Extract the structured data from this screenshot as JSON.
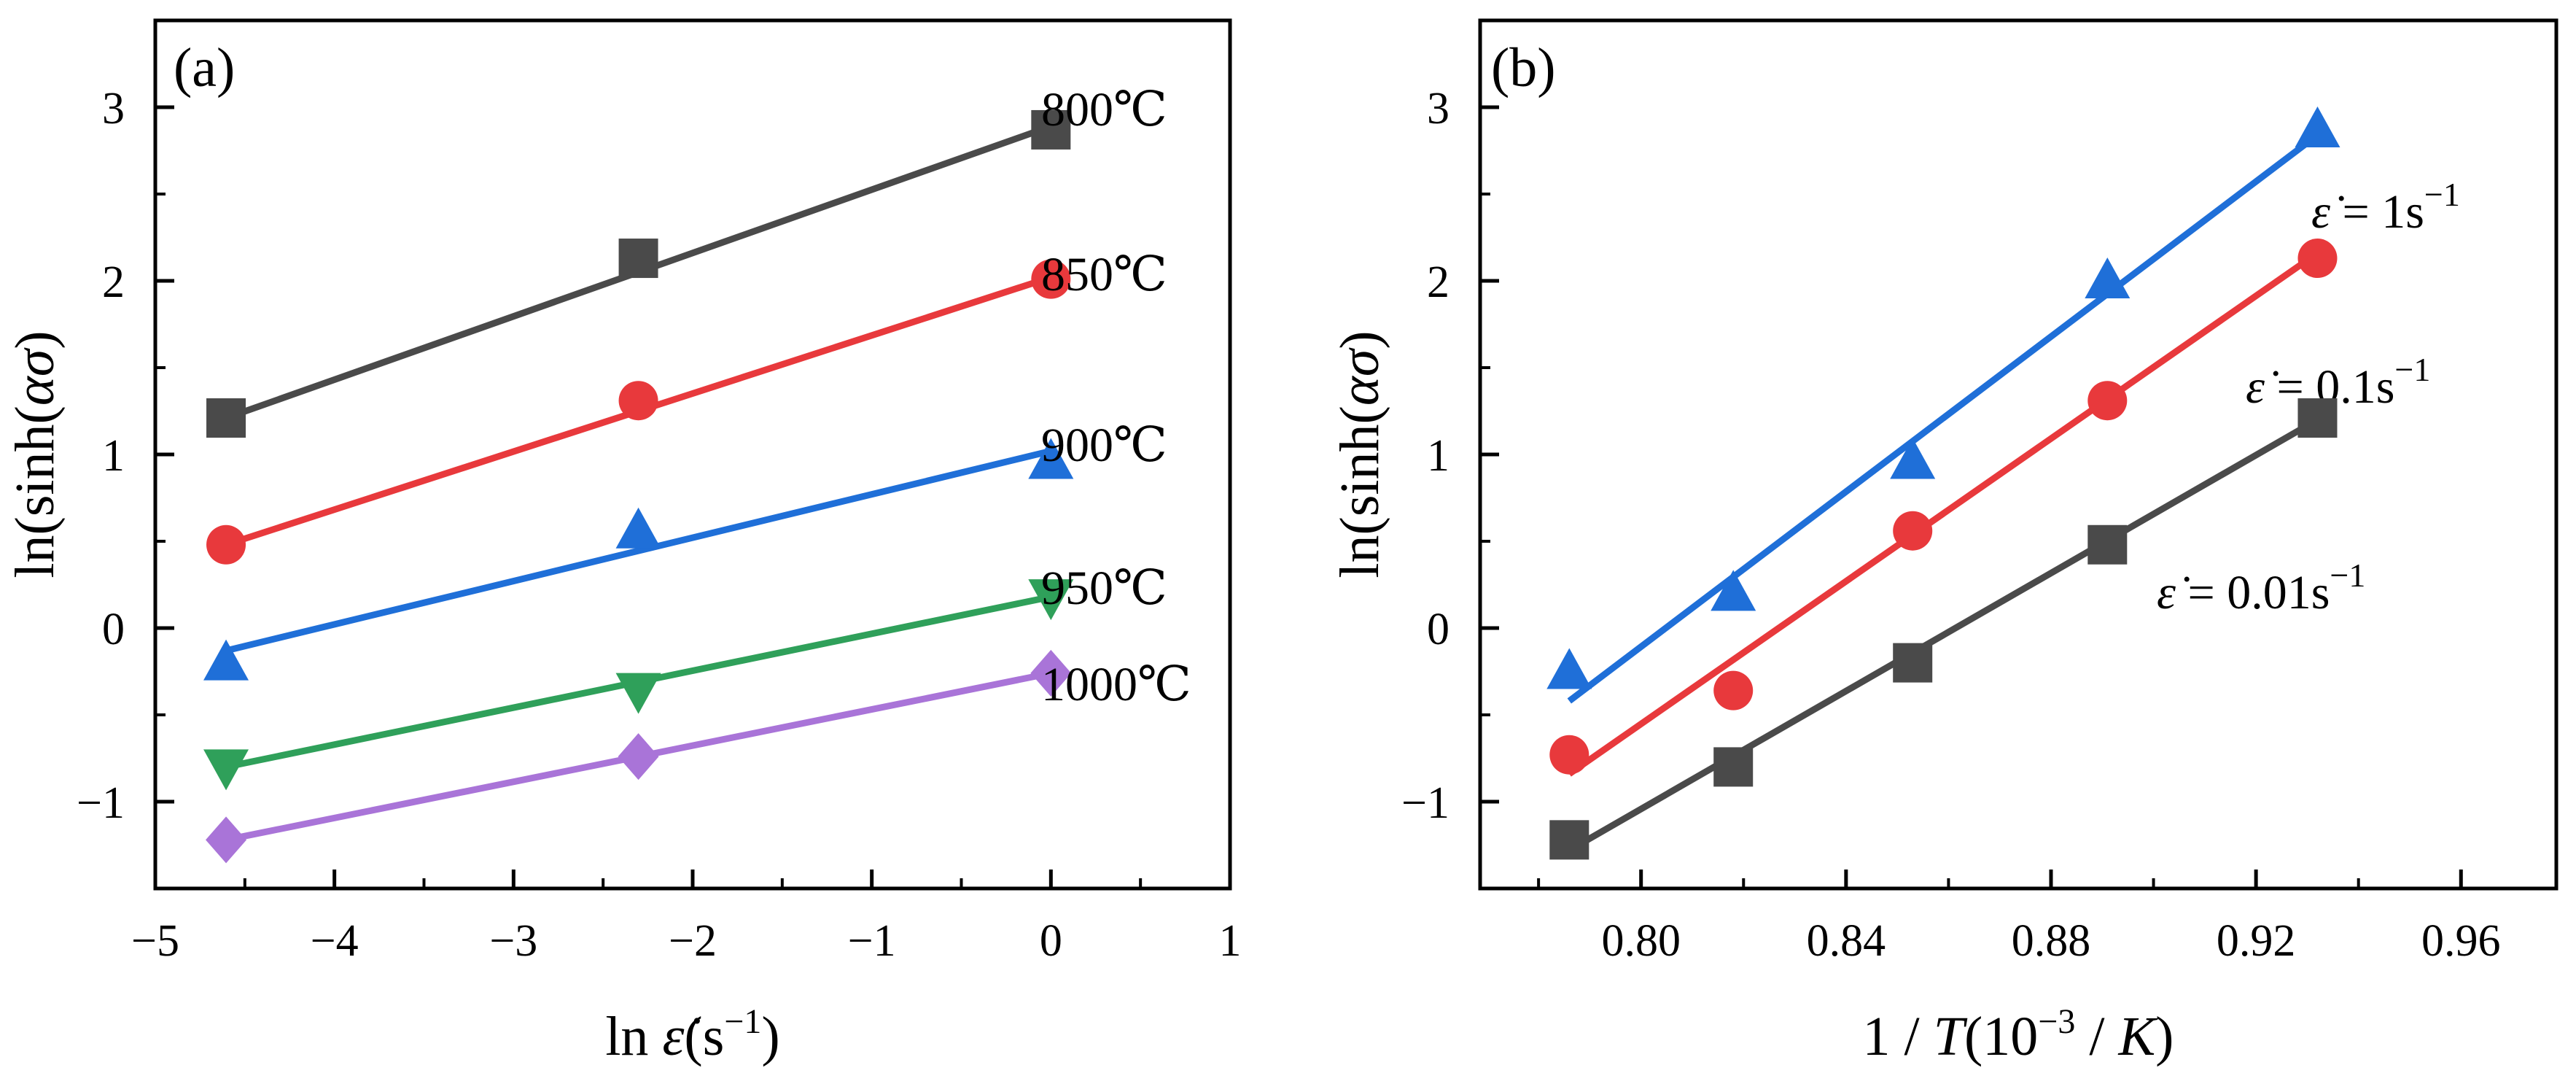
{
  "chart_data": [
    {
      "type": "scatter",
      "panel_label": "(a)",
      "xlabel_prefix": "ln ",
      "xlabel_symbol": "ε̇",
      "xlabel_unit_open": "(s",
      "xlabel_unit_exp": "−1",
      "xlabel_unit_close": ")",
      "ylabel": "ln(sinh(ασ)",
      "xlim": [
        -5,
        1
      ],
      "ylim": [
        -1.5,
        3.5
      ],
      "xticks": [
        -5,
        -4,
        -3,
        -2,
        -1,
        0,
        1
      ],
      "xtick_labels": [
        "−5",
        "−4",
        "−3",
        "−2",
        "−1",
        "0",
        "1"
      ],
      "yticks": [
        -1,
        0,
        1,
        2,
        3
      ],
      "ytick_labels": [
        "−1",
        "0",
        "1",
        "2",
        "3"
      ],
      "fit_lines": true,
      "series": [
        {
          "name": "800℃",
          "marker": "square",
          "color": "#4a4a4a",
          "x": [
            -4.605,
            -2.303,
            0
          ],
          "y": [
            1.21,
            2.13,
            2.87
          ],
          "fit": [
            [
              -4.605,
              1.21
            ],
            [
              0,
              2.89
            ]
          ]
        },
        {
          "name": "850℃",
          "marker": "circle",
          "color": "#e8393c",
          "x": [
            -4.605,
            -2.303,
            0
          ],
          "y": [
            0.48,
            1.31,
            2.01
          ],
          "fit": [
            [
              -4.605,
              0.48
            ],
            [
              0,
              2.02
            ]
          ]
        },
        {
          "name": "900℃",
          "marker": "triangle-up",
          "color": "#1f6fd8",
          "x": [
            -4.605,
            -2.303,
            0
          ],
          "y": [
            -0.2,
            0.56,
            0.96
          ],
          "fit": [
            [
              -4.605,
              -0.13
            ],
            [
              0,
              1.02
            ]
          ]
        },
        {
          "name": "950℃",
          "marker": "triangle-down",
          "color": "#2fa05a",
          "x": [
            -4.605,
            -2.303,
            0
          ],
          "y": [
            -0.8,
            -0.36,
            0.18
          ],
          "fit": [
            [
              -4.605,
              -0.8
            ],
            [
              0,
              0.18
            ]
          ]
        },
        {
          "name": "1000℃",
          "marker": "diamond",
          "color": "#a974d8",
          "x": [
            -4.605,
            -2.303,
            0
          ],
          "y": [
            -1.22,
            -0.74,
            -0.26
          ],
          "fit": [
            [
              -4.605,
              -1.22
            ],
            [
              0,
              -0.26
            ]
          ]
        }
      ]
    },
    {
      "type": "scatter",
      "panel_label": "(b)",
      "xlabel_prefix": "1 / ",
      "xlabel_symbol": "T",
      "xlabel_unit_open": "(10",
      "xlabel_unit_exp": "−3",
      "xlabel_unit_mid": " / ",
      "xlabel_unit_k": "K",
      "xlabel_unit_close": ")",
      "ylabel": "ln(sinh(ασ)",
      "xlim": [
        0.7686,
        0.9786
      ],
      "ylim": [
        -1.5,
        3.5
      ],
      "xticks": [
        0.8,
        0.84,
        0.88,
        0.92,
        0.96
      ],
      "xtick_labels": [
        "0.80",
        "0.84",
        "0.88",
        "0.92",
        "0.96"
      ],
      "xminor": [
        0.78,
        0.82,
        0.86,
        0.9,
        0.94
      ],
      "yticks": [
        -1,
        0,
        1,
        2,
        3
      ],
      "ytick_labels": [
        "−1",
        "0",
        "1",
        "2",
        "3"
      ],
      "fit_lines": true,
      "series": [
        {
          "name_symbol": "ε̇",
          "name_rest": " = 1s",
          "name_exp": "−1",
          "marker": "triangle-up",
          "color": "#1f6fd8",
          "x": [
            0.786,
            0.818,
            0.853,
            0.891,
            0.932
          ],
          "y": [
            -0.25,
            0.2,
            0.96,
            2.0,
            2.87
          ],
          "fit": [
            [
              0.786,
              -0.42
            ],
            [
              0.932,
              2.84
            ]
          ]
        },
        {
          "name_symbol": "ε̇",
          "name_rest": " = 0.1s",
          "name_exp": "−1",
          "marker": "circle",
          "color": "#e8393c",
          "x": [
            0.786,
            0.818,
            0.853,
            0.891,
            0.932
          ],
          "y": [
            -0.73,
            -0.36,
            0.56,
            1.31,
            2.13
          ],
          "fit": [
            [
              0.786,
              -0.84
            ],
            [
              0.932,
              2.16
            ]
          ]
        },
        {
          "name_symbol": "ε̇",
          "name_rest": " = 0.01s",
          "name_exp": "−1",
          "marker": "square",
          "color": "#4a4a4a",
          "x": [
            0.786,
            0.818,
            0.853,
            0.891,
            0.932
          ],
          "y": [
            -1.22,
            -0.8,
            -0.2,
            0.48,
            1.21
          ],
          "fit": [
            [
              0.786,
              -1.28
            ],
            [
              0.932,
              1.2
            ]
          ]
        }
      ]
    }
  ]
}
